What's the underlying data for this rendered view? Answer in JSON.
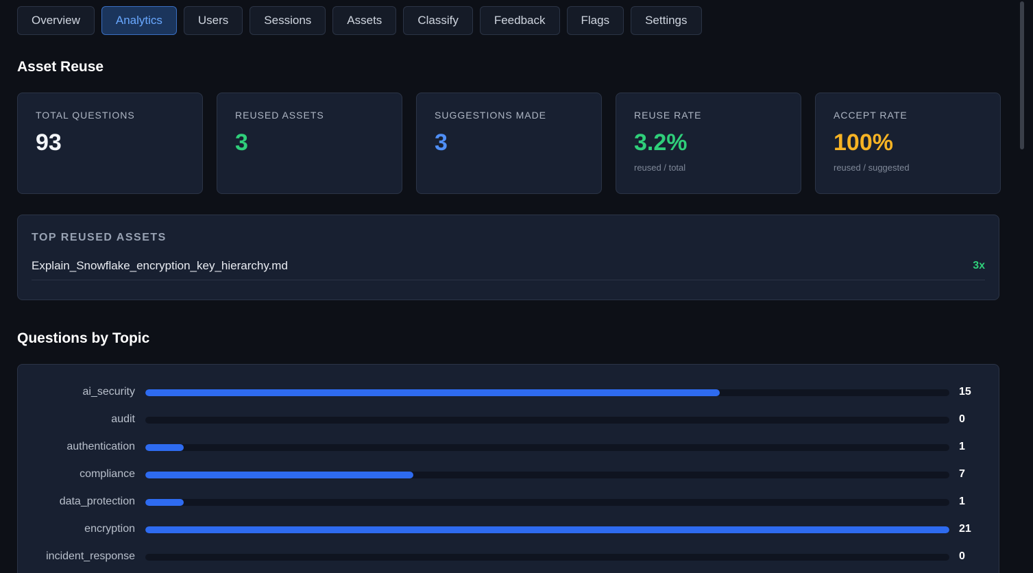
{
  "tabs": [
    {
      "label": "Overview",
      "active": false
    },
    {
      "label": "Analytics",
      "active": true
    },
    {
      "label": "Users",
      "active": false
    },
    {
      "label": "Sessions",
      "active": false
    },
    {
      "label": "Assets",
      "active": false
    },
    {
      "label": "Classify",
      "active": false
    },
    {
      "label": "Feedback",
      "active": false
    },
    {
      "label": "Flags",
      "active": false
    },
    {
      "label": "Settings",
      "active": false
    }
  ],
  "asset_reuse": {
    "title": "Asset Reuse",
    "cards": [
      {
        "label": "TOTAL QUESTIONS",
        "value": "93",
        "sub": "",
        "color": "#f3f5f8"
      },
      {
        "label": "REUSED ASSETS",
        "value": "3",
        "sub": "",
        "color": "#2fcf7a"
      },
      {
        "label": "SUGGESTIONS MADE",
        "value": "3",
        "sub": "",
        "color": "#4f8ff7"
      },
      {
        "label": "REUSE RATE",
        "value": "3.2%",
        "sub": "reused / total",
        "color": "#2fcf7a"
      },
      {
        "label": "ACCEPT RATE",
        "value": "100%",
        "sub": "reused / suggested",
        "color": "#f6b324"
      }
    ]
  },
  "top_reused": {
    "title": "TOP REUSED ASSETS",
    "items": [
      {
        "name": "Explain_Snowflake_encryption_key_hierarchy.md",
        "count": "3x"
      }
    ]
  },
  "questions_by_topic": {
    "title": "Questions by Topic"
  },
  "chart_data": {
    "type": "bar",
    "orientation": "horizontal",
    "categories": [
      "ai_security",
      "audit",
      "authentication",
      "compliance",
      "data_protection",
      "encryption",
      "incident_response"
    ],
    "values": [
      15,
      0,
      1,
      7,
      1,
      21,
      0
    ],
    "xlim": [
      0,
      21
    ],
    "bar_color": "#2e6bf0"
  }
}
